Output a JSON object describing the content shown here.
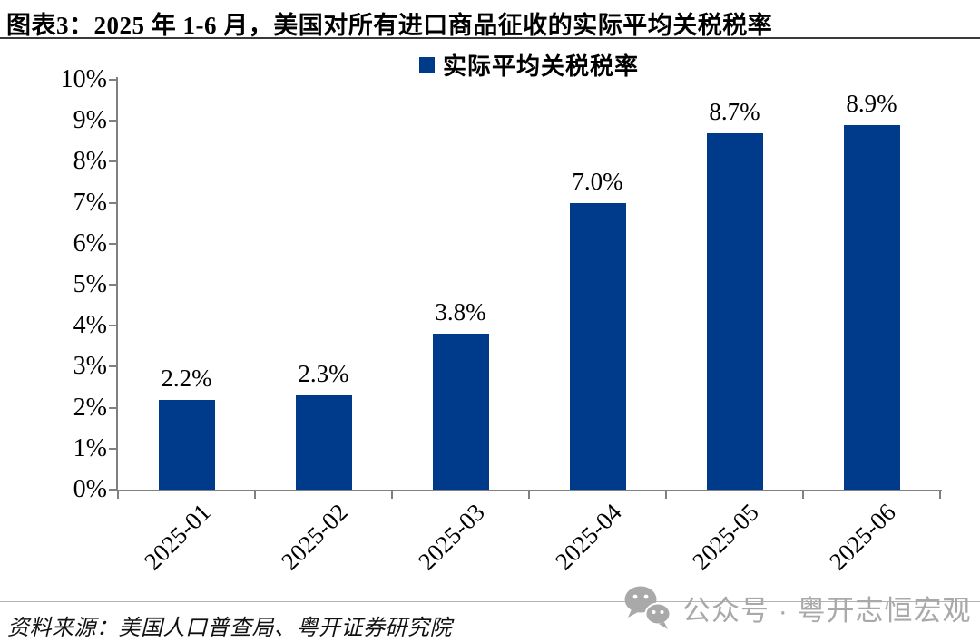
{
  "header": {
    "title": "图表3：2025 年 1-6 月，美国对所有进口商品征收的实际平均关税税率"
  },
  "chart_data": {
    "type": "bar",
    "title": "图表3：2025 年 1-6 月，美国对所有进口商品征收的实际平均关税税率",
    "legend": [
      "实际平均关税税率"
    ],
    "legend_position": "top-center",
    "categories": [
      "2025-01",
      "2025-02",
      "2025-03",
      "2025-04",
      "2025-05",
      "2025-06"
    ],
    "values": [
      2.2,
      2.3,
      3.8,
      7.0,
      8.7,
      8.9
    ],
    "data_labels": [
      "2.2%",
      "2.3%",
      "3.8%",
      "7.0%",
      "8.7%",
      "8.9%"
    ],
    "xlabel": "",
    "ylabel": "",
    "ylim": [
      0,
      10
    ],
    "ytick_step": 1,
    "ytick_labels": [
      "0%",
      "1%",
      "2%",
      "3%",
      "4%",
      "5%",
      "6%",
      "7%",
      "8%",
      "9%",
      "10%"
    ],
    "grid": false,
    "bar_color": "#003a8a",
    "axis_color": "#808080",
    "label_color": "#000000"
  },
  "footer": {
    "source": "资料来源：美国人口普查局、粤开证券研究院"
  },
  "watermark": {
    "icon": "wechat-icon",
    "text": "公众号 · 粤开志恒宏观",
    "color": "#a9a9a9"
  }
}
